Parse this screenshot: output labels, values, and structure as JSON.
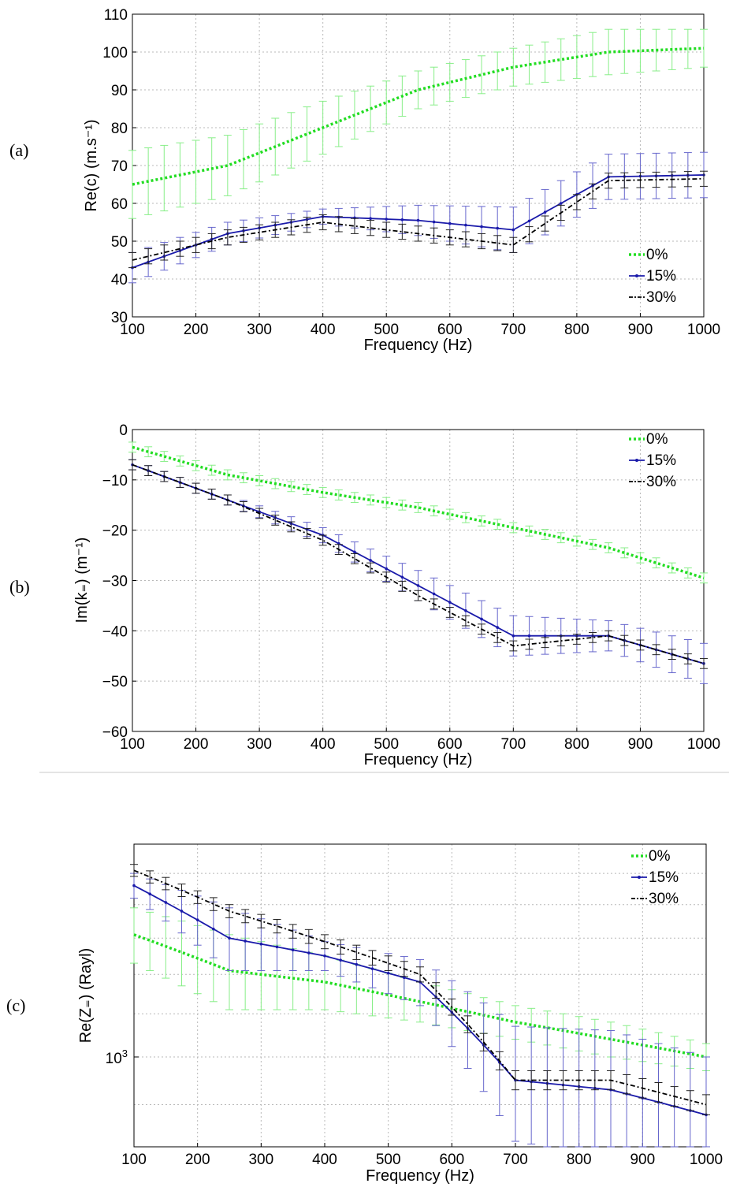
{
  "chart_data": [
    {
      "panel": "(a)",
      "type": "line",
      "xlabel": "Frequency (Hz)",
      "ylabel": "Re(c) (m.s⁻¹)",
      "xlim": [
        100,
        1000
      ],
      "ylim": [
        30,
        110
      ],
      "x_ticks": [
        "100",
        "200",
        "300",
        "400",
        "500",
        "600",
        "700",
        "800",
        "900",
        "1000"
      ],
      "y_ticks": [
        "30",
        "40",
        "50",
        "60",
        "70",
        "80",
        "90",
        "100",
        "110"
      ],
      "legend_position": "bottom-right",
      "x": [
        100,
        250,
        400,
        550,
        700,
        850,
        1000
      ],
      "series": [
        {
          "name": "0%",
          "color": "#22dd22",
          "style": "dotted",
          "values": [
            65,
            70,
            80,
            90,
            96,
            100,
            101
          ],
          "err": [
            9,
            8,
            7,
            5,
            5,
            6,
            5
          ]
        },
        {
          "name": "15%",
          "color": "#1a1aaa",
          "style": "solid-marker",
          "values": [
            43,
            52,
            56.5,
            55.5,
            53,
            67,
            67.5
          ],
          "err": [
            4,
            3,
            2,
            4,
            6,
            6,
            6
          ]
        },
        {
          "name": "30%",
          "color": "#000000",
          "style": "dashdot",
          "values": [
            45,
            51,
            55,
            52,
            49,
            66,
            66.5
          ],
          "err": [
            2,
            2,
            2,
            2,
            2,
            2,
            2
          ]
        }
      ]
    },
    {
      "panel": "(b)",
      "type": "line",
      "xlabel": "Frequency (Hz)",
      "ylabel": "Im(k₌) (m⁻¹)",
      "xlim": [
        100,
        1000
      ],
      "ylim": [
        -60,
        0
      ],
      "x_ticks": [
        "100",
        "200",
        "300",
        "400",
        "500",
        "600",
        "700",
        "800",
        "900",
        "1000"
      ],
      "y_ticks": [
        "−60",
        "−50",
        "−40",
        "−30",
        "−20",
        "−10",
        "0"
      ],
      "legend_position": "top-right",
      "x": [
        100,
        250,
        400,
        550,
        700,
        850,
        1000
      ],
      "series": [
        {
          "name": "0%",
          "color": "#22dd22",
          "style": "dotted",
          "values": [
            -3.5,
            -9,
            -12.5,
            -15.5,
            -19.5,
            -23.5,
            -29.5
          ],
          "err": [
            1,
            1,
            1,
            1,
            1,
            1,
            1
          ]
        },
        {
          "name": "15%",
          "color": "#1a1aaa",
          "style": "solid-marker",
          "values": [
            -7,
            -14,
            -21,
            -31,
            -41,
            -41,
            -46.5
          ],
          "err": [
            1,
            1,
            1.5,
            3,
            4,
            3,
            4
          ]
        },
        {
          "name": "30%",
          "color": "#000000",
          "style": "dashdot",
          "values": [
            -7,
            -14,
            -22,
            -33,
            -43,
            -41,
            -46.5
          ],
          "err": [
            1,
            1,
            1,
            1,
            1,
            1,
            1
          ]
        }
      ]
    },
    {
      "panel": "(c)",
      "type": "line",
      "xlabel": "Frequency (Hz)",
      "ylabel": "Re(Z₌) (Rayl)",
      "yscale": "log",
      "xlim": [
        100,
        1000
      ],
      "ylim": [
        820,
        1600
      ],
      "x_ticks": [
        "100",
        "200",
        "300",
        "400",
        "500",
        "600",
        "700",
        "800",
        "900",
        "1000"
      ],
      "y_tick_label": {
        "base": "10",
        "exp": "3"
      },
      "legend_position": "top-right",
      "x": [
        100,
        250,
        400,
        550,
        700,
        850,
        1000
      ],
      "series": [
        {
          "name": "0%",
          "color": "#22dd22",
          "style": "dotted",
          "values": [
            1310,
            1210,
            1180,
            1130,
            1080,
            1040,
            1000
          ],
          "err": [
            80,
            100,
            70,
            50,
            40,
            40,
            30
          ]
        },
        {
          "name": "15%",
          "color": "#1a1aaa",
          "style": "solid-marker",
          "values": [
            1460,
            1300,
            1250,
            1180,
            950,
            930,
            880
          ],
          "err": [
            40,
            90,
            40,
            60,
            120,
            130,
            120
          ]
        },
        {
          "name": "30%",
          "color": "#000000",
          "style": "dashdot",
          "values": [
            1510,
            1380,
            1290,
            1200,
            950,
            950,
            900
          ],
          "err": [
            20,
            20,
            20,
            20,
            20,
            20,
            20
          ]
        }
      ]
    }
  ]
}
